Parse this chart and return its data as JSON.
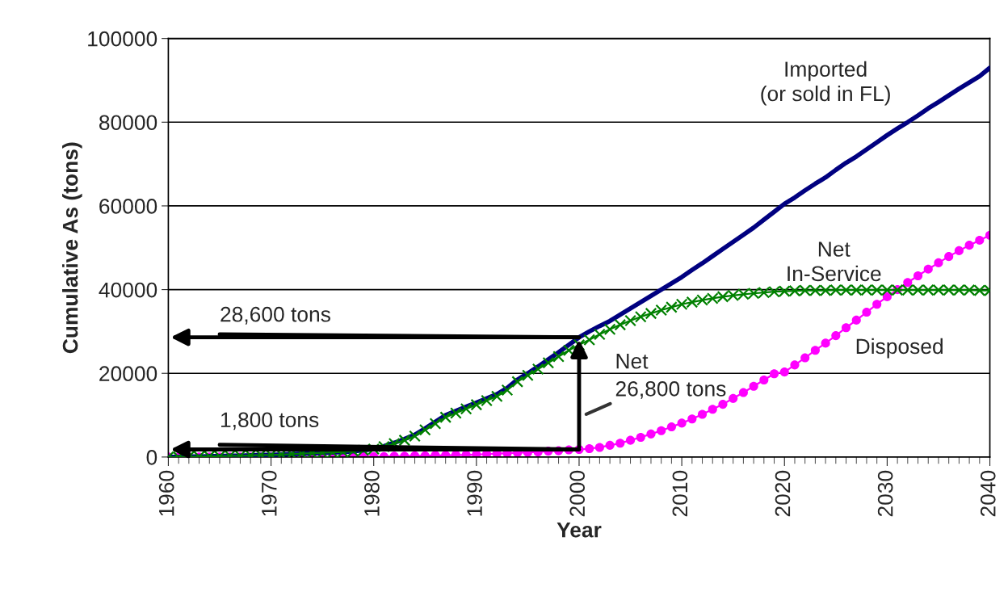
{
  "chart_data": {
    "type": "line",
    "xlabel": "Year",
    "ylabel": "Cumulative As (tons)",
    "x": [
      1960,
      1961,
      1962,
      1963,
      1964,
      1965,
      1966,
      1967,
      1968,
      1969,
      1970,
      1971,
      1972,
      1973,
      1974,
      1975,
      1976,
      1977,
      1978,
      1979,
      1980,
      1981,
      1982,
      1983,
      1984,
      1985,
      1986,
      1987,
      1988,
      1989,
      1990,
      1991,
      1992,
      1993,
      1994,
      1995,
      1996,
      1997,
      1998,
      1999,
      2000,
      2001,
      2002,
      2003,
      2004,
      2005,
      2006,
      2007,
      2008,
      2009,
      2010,
      2011,
      2012,
      2013,
      2014,
      2015,
      2016,
      2017,
      2018,
      2019,
      2020,
      2021,
      2022,
      2023,
      2024,
      2025,
      2026,
      2027,
      2028,
      2029,
      2030,
      2031,
      2032,
      2033,
      2034,
      2035,
      2036,
      2037,
      2038,
      2039,
      2040
    ],
    "series": [
      {
        "name": "Imported\n(or sold in FL)",
        "color": "#000080",
        "marker": "none",
        "values": [
          0,
          0,
          100,
          100,
          200,
          200,
          300,
          300,
          400,
          500,
          500,
          600,
          700,
          800,
          900,
          1000,
          1100,
          1200,
          1400,
          1600,
          1900,
          2600,
          3400,
          4300,
          5300,
          6800,
          8400,
          10000,
          11000,
          12000,
          13000,
          14000,
          15000,
          16500,
          18500,
          20000,
          21600,
          23300,
          25000,
          26800,
          28600,
          30000,
          31300,
          32500,
          34000,
          35500,
          37000,
          38500,
          40000,
          41500,
          43000,
          44700,
          46300,
          48000,
          49700,
          51400,
          53100,
          54800,
          56700,
          58600,
          60500,
          62000,
          63700,
          65300,
          66800,
          68600,
          70300,
          71800,
          73500,
          75200,
          76900,
          78500,
          80000,
          81600,
          83300,
          84800,
          86400,
          88000,
          89500,
          91000,
          93000
        ]
      },
      {
        "name": "Net\nIn-Service",
        "color": "#008000",
        "marker": "cross",
        "values": [
          0,
          0,
          100,
          100,
          200,
          200,
          300,
          300,
          400,
          500,
          500,
          600,
          700,
          800,
          900,
          1000,
          1100,
          1200,
          1400,
          1600,
          1900,
          2500,
          3200,
          4000,
          5000,
          6500,
          8000,
          9500,
          10500,
          11500,
          12500,
          13500,
          14500,
          16000,
          18000,
          19500,
          21000,
          22500,
          24000,
          25500,
          26800,
          28000,
          29300,
          30500,
          31600,
          32600,
          33500,
          34300,
          35100,
          35800,
          36500,
          37000,
          37500,
          37900,
          38300,
          38600,
          38900,
          39100,
          39300,
          39500,
          39600,
          39700,
          39800,
          39800,
          39800,
          39900,
          39900,
          39900,
          39900,
          39900,
          39900,
          39900,
          39900,
          39900,
          39900,
          39900,
          39900,
          39900,
          39900,
          39800,
          39800
        ]
      },
      {
        "name": "Disposed",
        "color": "#ff00ff",
        "marker": "circle",
        "values": [
          0,
          0,
          0,
          0,
          0,
          0,
          0,
          0,
          0,
          0,
          0,
          0,
          0,
          0,
          0,
          0,
          0,
          0,
          100,
          100,
          100,
          100,
          200,
          200,
          300,
          300,
          400,
          400,
          500,
          500,
          600,
          700,
          800,
          900,
          1000,
          1100,
          1200,
          1400,
          1500,
          1700,
          1800,
          2000,
          2300,
          2800,
          3300,
          4000,
          4700,
          5500,
          6300,
          7200,
          8100,
          9100,
          10200,
          11400,
          12600,
          14000,
          15400,
          16900,
          18400,
          19900,
          20300,
          22000,
          23700,
          25500,
          27200,
          29000,
          30900,
          32700,
          34600,
          36500,
          38300,
          40000,
          41700,
          43300,
          44900,
          46400,
          47900,
          49300,
          50600,
          51800,
          53000
        ]
      }
    ],
    "xlim": [
      1960,
      2040
    ],
    "xticks": [
      1960,
      1970,
      1980,
      1990,
      2000,
      2010,
      2020,
      2030,
      2040
    ],
    "ylim": [
      0,
      100000
    ],
    "yticks": [
      0,
      20000,
      40000,
      60000,
      80000,
      100000
    ],
    "grid": "y",
    "legend": false,
    "annotations": [
      {
        "text": "28,600 tons",
        "x": 2000,
        "y": 28600
      },
      {
        "text": "1,800 tons",
        "x": 2000,
        "y": 1800
      },
      "Net\n26,800 tons"
    ]
  }
}
